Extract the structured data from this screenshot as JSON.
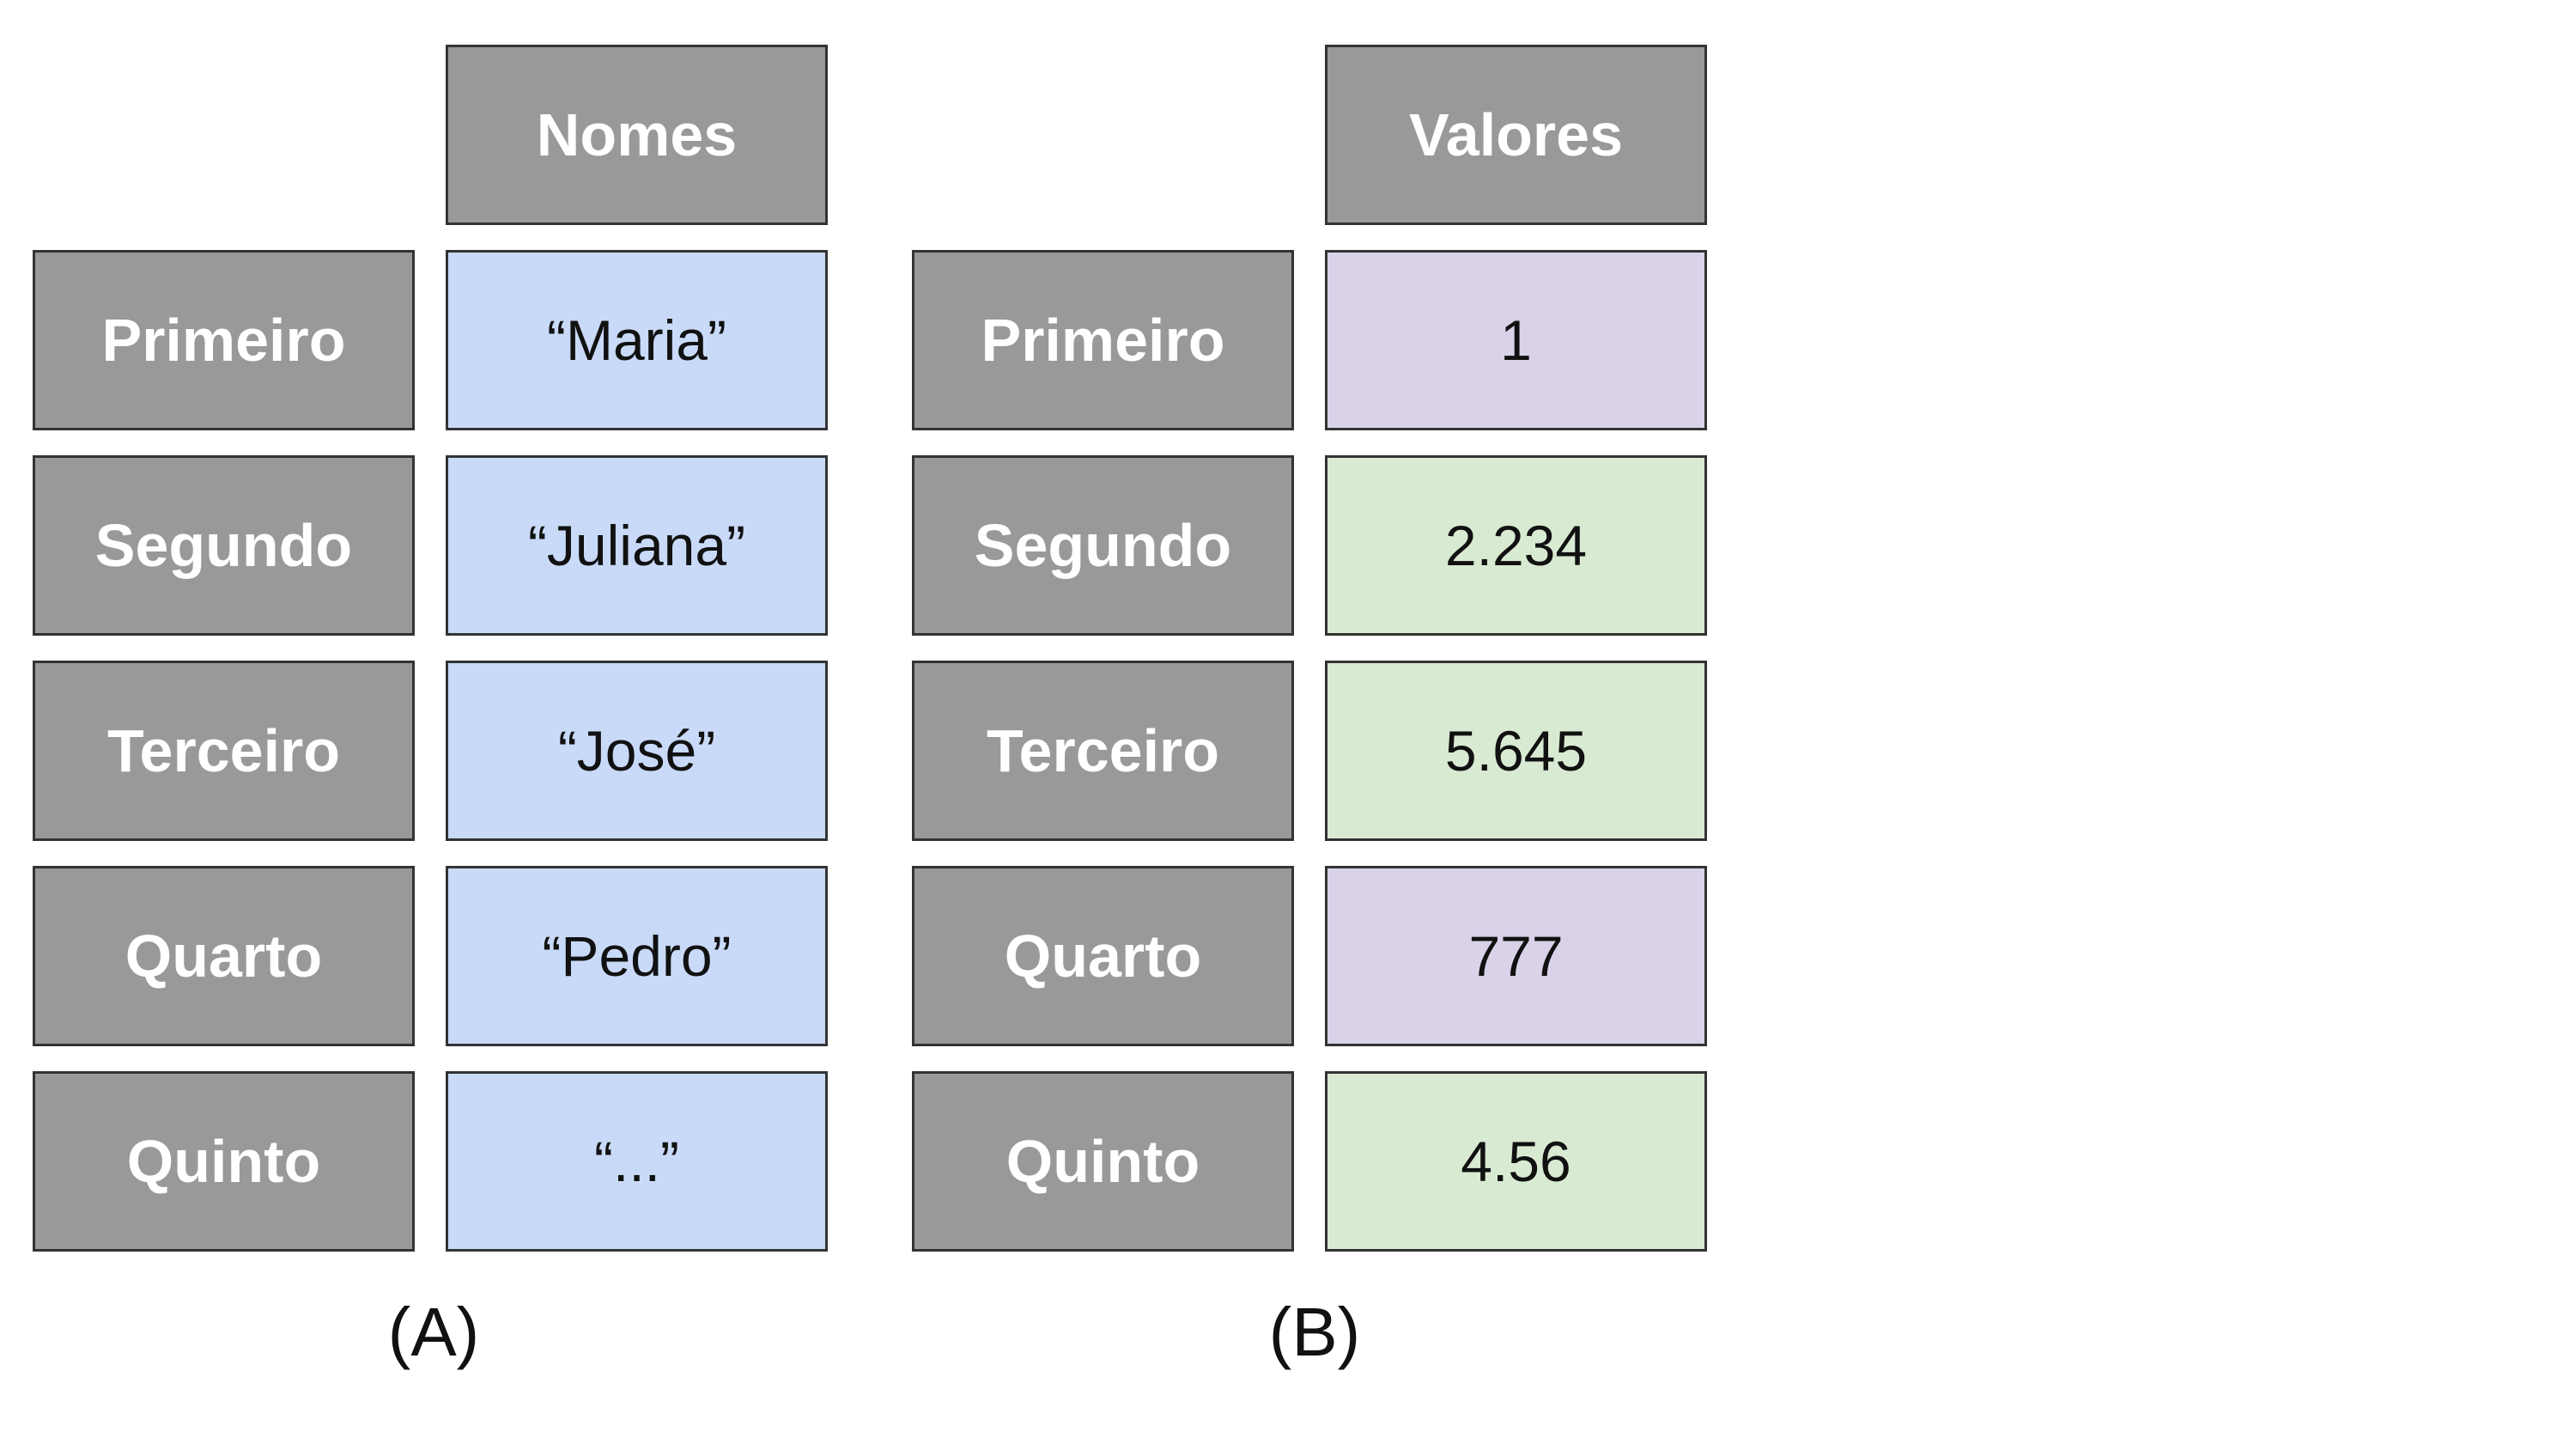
{
  "colors": {
    "header_fill": "#999999",
    "label_fill": "#999999",
    "header_text": "#ffffff",
    "border": "#333333",
    "blue_fill": "#c9daf8",
    "purple_fill": "#d9d2e9",
    "green_fill": "#d9ead3"
  },
  "panel_a": {
    "header": "Nomes",
    "caption": "(A)",
    "rows": [
      {
        "label": "Primeiro",
        "value": "“Maria”",
        "fill": "blue"
      },
      {
        "label": "Segundo",
        "value": "“Juliana”",
        "fill": "blue"
      },
      {
        "label": "Terceiro",
        "value": "“José”",
        "fill": "blue"
      },
      {
        "label": "Quarto",
        "value": "“Pedro”",
        "fill": "blue"
      },
      {
        "label": "Quinto",
        "value": "“...”",
        "fill": "blue"
      }
    ]
  },
  "panel_b": {
    "header": "Valores",
    "caption": "(B)",
    "rows": [
      {
        "label": "Primeiro",
        "value": "1",
        "fill": "purple"
      },
      {
        "label": "Segundo",
        "value": "2.234",
        "fill": "green"
      },
      {
        "label": "Terceiro",
        "value": "5.645",
        "fill": "green"
      },
      {
        "label": "Quarto",
        "value": "777",
        "fill": "purple"
      },
      {
        "label": "Quinto",
        "value": "4.56",
        "fill": "green"
      }
    ]
  }
}
